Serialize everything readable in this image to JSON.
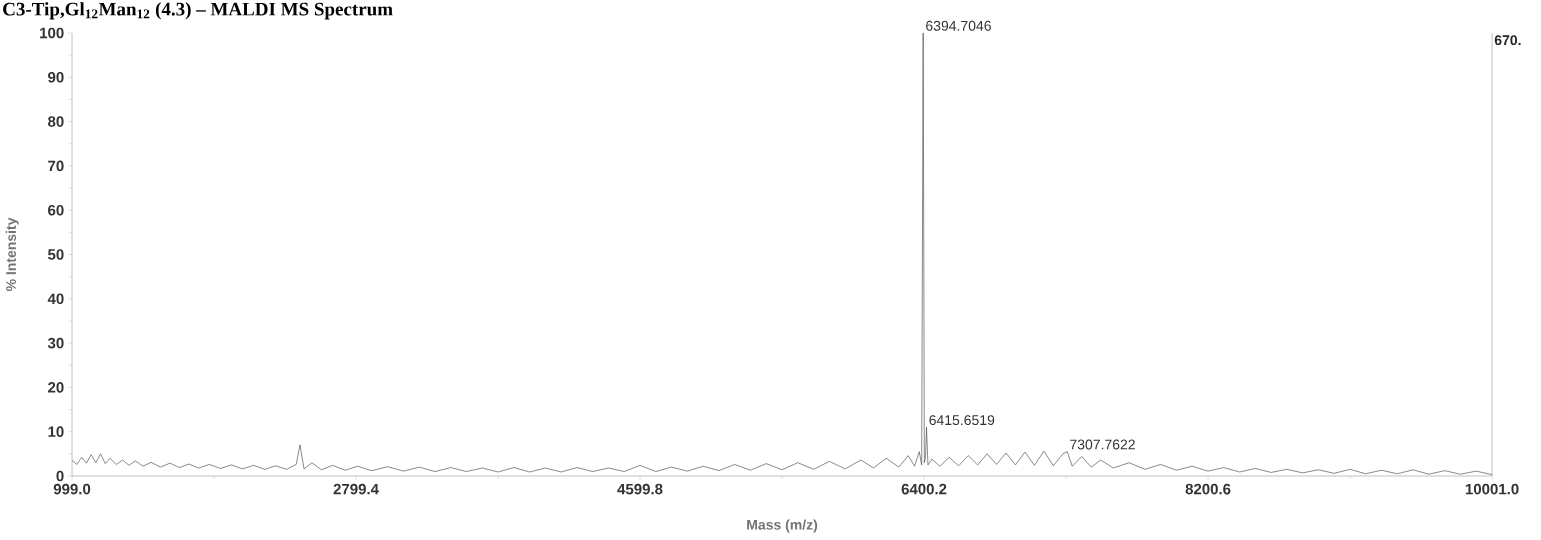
{
  "chart_data": {
    "type": "line",
    "title": "C3-Tip,Gl$_{12}$Man$_{12}$ (4.3) – MALDI MS Spectrum",
    "xlabel": "Mass (m/z)",
    "ylabel": "% Intensity",
    "x": [
      999,
      1030,
      1060,
      1090,
      1120,
      1150,
      1180,
      1210,
      1240,
      1280,
      1320,
      1360,
      1400,
      1450,
      1500,
      1560,
      1620,
      1680,
      1740,
      1800,
      1870,
      1940,
      2010,
      2080,
      2150,
      2220,
      2290,
      2360,
      2420,
      2444,
      2470,
      2520,
      2580,
      2650,
      2730,
      2810,
      2900,
      3000,
      3100,
      3200,
      3300,
      3400,
      3500,
      3600,
      3700,
      3800,
      3900,
      4000,
      4100,
      4200,
      4300,
      4400,
      4500,
      4600,
      4700,
      4800,
      4900,
      5000,
      5100,
      5200,
      5300,
      5400,
      5500,
      5600,
      5700,
      5800,
      5900,
      6000,
      6080,
      6160,
      6240,
      6300,
      6340,
      6370,
      6385,
      6394.7046,
      6402,
      6409,
      6415.6519,
      6425,
      6450,
      6500,
      6560,
      6620,
      6680,
      6740,
      6800,
      6860,
      6920,
      6980,
      7040,
      7100,
      7160,
      7220,
      7280,
      7307.7622,
      7340,
      7400,
      7460,
      7520,
      7600,
      7700,
      7800,
      7900,
      8000,
      8100,
      8200,
      8300,
      8400,
      8500,
      8600,
      8700,
      8800,
      8900,
      9000,
      9100,
      9200,
      9300,
      9400,
      9500,
      9600,
      9700,
      9800,
      9900,
      10001
    ],
    "series": [
      {
        "color": "#3a3a3a",
        "values": [
          3.5,
          2.6,
          4.2,
          2.9,
          4.8,
          3.0,
          5.0,
          2.8,
          4.0,
          2.6,
          3.6,
          2.4,
          3.4,
          2.2,
          3.1,
          2.0,
          2.9,
          1.9,
          2.7,
          1.8,
          2.6,
          1.7,
          2.5,
          1.6,
          2.4,
          1.5,
          2.3,
          1.5,
          2.6,
          7.0,
          1.6,
          3.0,
          1.4,
          2.4,
          1.3,
          2.2,
          1.2,
          2.1,
          1.1,
          2.0,
          1.0,
          1.9,
          1.0,
          1.8,
          0.9,
          1.9,
          0.9,
          1.8,
          0.9,
          1.9,
          1.0,
          1.8,
          1.0,
          2.4,
          1.0,
          2.0,
          1.1,
          2.2,
          1.2,
          2.6,
          1.3,
          2.8,
          1.4,
          3.0,
          1.5,
          3.3,
          1.6,
          3.6,
          1.8,
          4.0,
          2.0,
          4.6,
          2.2,
          5.5,
          2.5,
          100,
          3.0,
          4.0,
          11,
          2.5,
          3.8,
          2.2,
          4.2,
          2.3,
          4.6,
          2.5,
          5.0,
          2.6,
          5.2,
          2.5,
          5.4,
          2.4,
          5.6,
          2.3,
          5.0,
          5.5,
          2.2,
          4.4,
          2.0,
          3.6,
          1.8,
          3.0,
          1.5,
          2.6,
          1.3,
          2.2,
          1.1,
          1.9,
          0.9,
          1.7,
          0.8,
          1.5,
          0.7,
          1.4,
          0.6,
          1.5,
          0.5,
          1.3,
          0.5,
          1.4,
          0.4,
          1.2,
          0.4,
          1.1,
          0.3
        ]
      }
    ],
    "xlim": [
      999,
      10001
    ],
    "ylim": [
      0,
      100
    ],
    "xticks": [
      {
        "value": 999,
        "label": "999.0"
      },
      2799.4,
      4599.8,
      6400.2,
      8200.6,
      {
        "value": 10001,
        "label": "10001.0"
      }
    ],
    "yticks": [
      0,
      10,
      20,
      30,
      40,
      50,
      60,
      70,
      80,
      90,
      100
    ],
    "annotations": [
      {
        "text": "6394.7046",
        "x": 6394.7046,
        "y": 100
      },
      {
        "text": "6415.6519",
        "x": 6415.6519,
        "y": 11
      },
      {
        "text": "7307.7622",
        "x": 7307.7622,
        "y": 5.5
      },
      "670."
    ],
    "grid": false,
    "marker": "none",
    "line_style": "solid"
  }
}
